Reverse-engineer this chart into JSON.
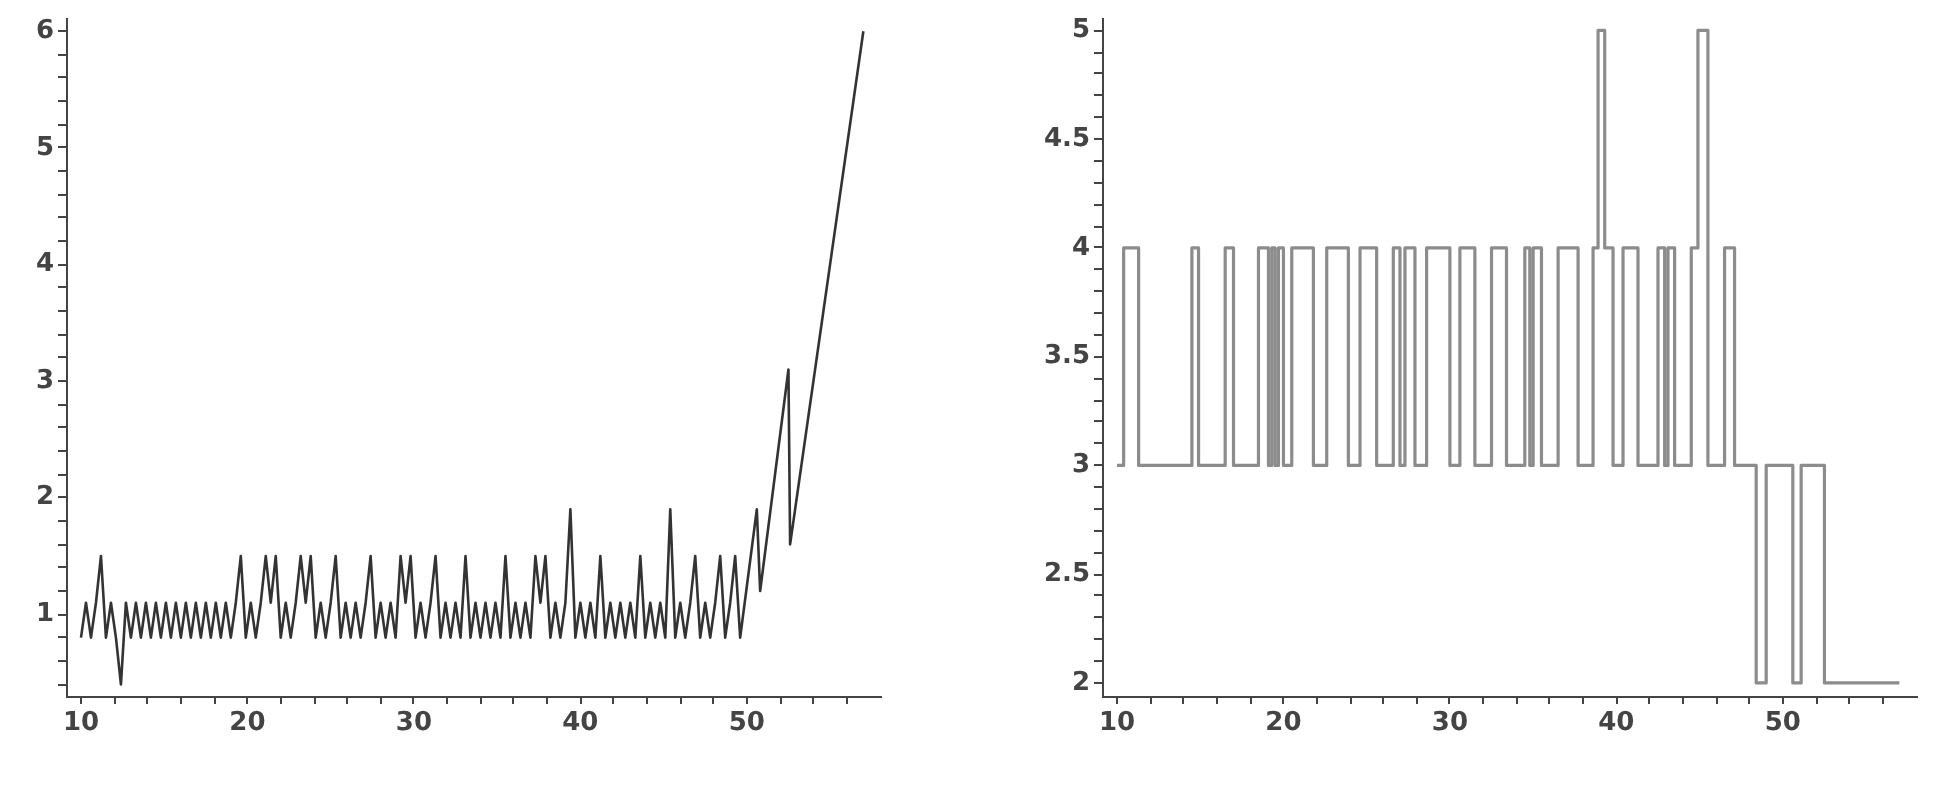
{
  "chart_data": [
    {
      "type": "line",
      "color": "#333333",
      "xlim": [
        9.1,
        58
      ],
      "ylim": [
        0.3,
        6.1
      ],
      "xticks": [
        10,
        {
          "value": 12,
          "label": null
        },
        {
          "value": 14,
          "label": null
        },
        {
          "value": 16,
          "label": null
        },
        {
          "value": 18,
          "label": null
        },
        20,
        {
          "value": 22,
          "label": null
        },
        {
          "value": 24,
          "label": null
        },
        {
          "value": 26,
          "label": null
        },
        {
          "value": 28,
          "label": null
        },
        30,
        {
          "value": 32,
          "label": null
        },
        {
          "value": 34,
          "label": null
        },
        {
          "value": 36,
          "label": null
        },
        {
          "value": 38,
          "label": null
        },
        40,
        {
          "value": 42,
          "label": null
        },
        {
          "value": 44,
          "label": null
        },
        {
          "value": 46,
          "label": null
        },
        {
          "value": 48,
          "label": null
        },
        50,
        {
          "value": 52,
          "label": null
        },
        {
          "value": 54,
          "label": null
        },
        {
          "value": 56,
          "label": null
        }
      ],
      "yticks": [
        {
          "value": 0.4,
          "label": null
        },
        {
          "value": 0.6,
          "label": null
        },
        {
          "value": 0.8,
          "label": null
        },
        1,
        {
          "value": 1.2,
          "label": null
        },
        {
          "value": 1.4,
          "label": null
        },
        {
          "value": 1.6,
          "label": null
        },
        {
          "value": 1.8,
          "label": null
        },
        2,
        {
          "value": 2.2,
          "label": null
        },
        {
          "value": 2.4,
          "label": null
        },
        {
          "value": 2.6,
          "label": null
        },
        {
          "value": 2.8,
          "label": null
        },
        3,
        {
          "value": 3.2,
          "label": null
        },
        {
          "value": 3.4,
          "label": null
        },
        {
          "value": 3.6,
          "label": null
        },
        {
          "value": 3.8,
          "label": null
        },
        4,
        {
          "value": 4.2,
          "label": null
        },
        {
          "value": 4.4,
          "label": null
        },
        {
          "value": 4.6,
          "label": null
        },
        {
          "value": 4.8,
          "label": null
        },
        5,
        {
          "value": 5.2,
          "label": null
        },
        {
          "value": 5.4,
          "label": null
        },
        {
          "value": 5.6,
          "label": null
        },
        {
          "value": 5.8,
          "label": null
        },
        6
      ],
      "x": [
        10.0,
        10.3,
        10.6,
        10.9,
        11.2,
        11.5,
        11.8,
        12.1,
        12.4,
        12.7,
        13.0,
        13.3,
        13.6,
        13.9,
        14.2,
        14.5,
        14.8,
        15.1,
        15.4,
        15.7,
        16.0,
        16.3,
        16.6,
        16.9,
        17.2,
        17.5,
        17.8,
        18.1,
        18.4,
        18.7,
        19.0,
        19.3,
        19.6,
        19.9,
        20.2,
        20.5,
        20.8,
        21.1,
        21.4,
        21.7,
        22.0,
        22.3,
        22.6,
        22.9,
        23.2,
        23.5,
        23.8,
        24.1,
        24.4,
        24.7,
        25.0,
        25.3,
        25.6,
        25.9,
        26.2,
        26.5,
        26.8,
        27.1,
        27.4,
        27.7,
        28.0,
        28.3,
        28.6,
        28.9,
        29.2,
        29.5,
        29.8,
        30.1,
        30.4,
        30.7,
        31.0,
        31.3,
        31.6,
        31.9,
        32.2,
        32.5,
        32.8,
        33.1,
        33.4,
        33.7,
        34.0,
        34.3,
        34.6,
        34.9,
        35.2,
        35.5,
        35.8,
        36.1,
        36.4,
        36.7,
        37.0,
        37.3,
        37.6,
        37.9,
        38.2,
        38.5,
        38.8,
        39.1,
        39.4,
        39.7,
        40.0,
        40.3,
        40.6,
        40.9,
        41.2,
        41.5,
        41.8,
        42.1,
        42.4,
        42.7,
        43.0,
        43.3,
        43.6,
        43.9,
        44.2,
        44.5,
        44.8,
        45.1,
        45.4,
        45.7,
        46.0,
        46.3,
        46.6,
        46.9,
        47.2,
        47.5,
        47.8,
        48.1,
        48.4,
        48.7,
        49.0,
        49.3,
        49.6,
        50.6,
        50.8,
        52.5,
        52.6,
        57.0
      ],
      "values": [
        0.8,
        1.1,
        0.8,
        1.1,
        1.5,
        0.8,
        1.1,
        0.8,
        0.4,
        1.1,
        0.8,
        1.1,
        0.8,
        1.1,
        0.8,
        1.1,
        0.8,
        1.1,
        0.8,
        1.1,
        0.8,
        1.1,
        0.8,
        1.1,
        0.8,
        1.1,
        0.8,
        1.1,
        0.8,
        1.1,
        0.8,
        1.1,
        1.5,
        0.8,
        1.1,
        0.8,
        1.1,
        1.5,
        1.1,
        1.5,
        0.8,
        1.1,
        0.8,
        1.1,
        1.5,
        1.1,
        1.5,
        0.8,
        1.1,
        0.8,
        1.1,
        1.5,
        0.8,
        1.1,
        0.8,
        1.1,
        0.8,
        1.1,
        1.5,
        0.8,
        1.1,
        0.8,
        1.1,
        0.8,
        1.5,
        1.1,
        1.5,
        0.8,
        1.1,
        0.8,
        1.1,
        1.5,
        0.8,
        1.1,
        0.8,
        1.1,
        0.8,
        1.5,
        0.8,
        1.1,
        0.8,
        1.1,
        0.8,
        1.1,
        0.8,
        1.5,
        0.8,
        1.1,
        0.8,
        1.1,
        0.8,
        1.5,
        1.1,
        1.5,
        0.8,
        1.1,
        0.8,
        1.1,
        1.9,
        0.8,
        1.1,
        0.8,
        1.1,
        0.8,
        1.5,
        0.8,
        1.1,
        0.8,
        1.1,
        0.8,
        1.1,
        0.8,
        1.5,
        0.8,
        1.1,
        0.8,
        1.1,
        0.8,
        1.9,
        0.8,
        1.1,
        0.8,
        1.1,
        1.5,
        0.8,
        1.1,
        0.8,
        1.1,
        1.5,
        0.8,
        1.1,
        1.5,
        0.8,
        1.9,
        1.2,
        3.1,
        1.6,
        6
      ]
    },
    {
      "type": "step",
      "color": "#8c8c8c",
      "xlim": [
        9.1,
        58
      ],
      "ylim": [
        1.94,
        5.05
      ],
      "xticks": [
        10,
        {
          "value": 12,
          "label": null
        },
        {
          "value": 14,
          "label": null
        },
        {
          "value": 16,
          "label": null
        },
        {
          "value": 18,
          "label": null
        },
        20,
        {
          "value": 22,
          "label": null
        },
        {
          "value": 24,
          "label": null
        },
        {
          "value": 26,
          "label": null
        },
        {
          "value": 28,
          "label": null
        },
        30,
        {
          "value": 32,
          "label": null
        },
        {
          "value": 34,
          "label": null
        },
        {
          "value": 36,
          "label": null
        },
        {
          "value": 38,
          "label": null
        },
        40,
        {
          "value": 42,
          "label": null
        },
        {
          "value": 44,
          "label": null
        },
        {
          "value": 46,
          "label": null
        },
        {
          "value": 48,
          "label": null
        },
        50,
        {
          "value": 52,
          "label": null
        },
        {
          "value": 54,
          "label": null
        },
        {
          "value": 56,
          "label": null
        }
      ],
      "yticks": [
        2,
        {
          "value": 2.1,
          "label": null
        },
        {
          "value": 2.2,
          "label": null
        },
        {
          "value": 2.3,
          "label": null
        },
        {
          "value": 2.4,
          "label": null
        },
        2.5,
        {
          "value": 2.6,
          "label": null
        },
        {
          "value": 2.7,
          "label": null
        },
        {
          "value": 2.8,
          "label": null
        },
        {
          "value": 2.9,
          "label": null
        },
        3,
        {
          "value": 3.1,
          "label": null
        },
        {
          "value": 3.2,
          "label": null
        },
        {
          "value": 3.3,
          "label": null
        },
        {
          "value": 3.4,
          "label": null
        },
        3.5,
        {
          "value": 3.6,
          "label": null
        },
        {
          "value": 3.7,
          "label": null
        },
        {
          "value": 3.8,
          "label": null
        },
        {
          "value": 3.9,
          "label": null
        },
        4,
        {
          "value": 4.1,
          "label": null
        },
        {
          "value": 4.2,
          "label": null
        },
        {
          "value": 4.3,
          "label": null
        },
        {
          "value": 4.4,
          "label": null
        },
        4.5,
        {
          "value": 4.6,
          "label": null
        },
        {
          "value": 4.7,
          "label": null
        },
        {
          "value": 4.8,
          "label": null
        },
        {
          "value": 4.9,
          "label": null
        },
        5
      ],
      "x": [
        10.0,
        10.4,
        11.3,
        14.5,
        14.9,
        16.5,
        17.0,
        18.5,
        19.1,
        19.3,
        19.5,
        19.7,
        20.0,
        20.5,
        21.8,
        22.6,
        23.9,
        24.6,
        25.6,
        26.6,
        27.0,
        27.3,
        27.9,
        28.6,
        30.0,
        30.6,
        31.5,
        32.5,
        33.4,
        34.5,
        34.8,
        35.0,
        35.5,
        36.5,
        37.7,
        38.6,
        38.9,
        39.3,
        39.8,
        40.4,
        41.3,
        42.5,
        42.9,
        43.1,
        43.5,
        44.5,
        44.9,
        45.5,
        46.5,
        47.1,
        48.4,
        49.0,
        50.6,
        51.1,
        52.5,
        57.0
      ],
      "values": [
        3,
        4,
        3,
        4,
        3,
        4,
        3,
        4,
        3,
        4,
        3,
        4,
        3,
        4,
        3,
        4,
        3,
        4,
        3,
        4,
        3,
        4,
        3,
        4,
        3,
        4,
        3,
        4,
        3,
        4,
        3,
        4,
        3,
        4,
        3,
        4,
        5,
        4,
        3,
        4,
        3,
        4,
        3,
        4,
        3,
        4,
        5,
        3,
        4,
        3,
        2,
        3,
        2,
        3,
        2,
        2
      ]
    }
  ]
}
